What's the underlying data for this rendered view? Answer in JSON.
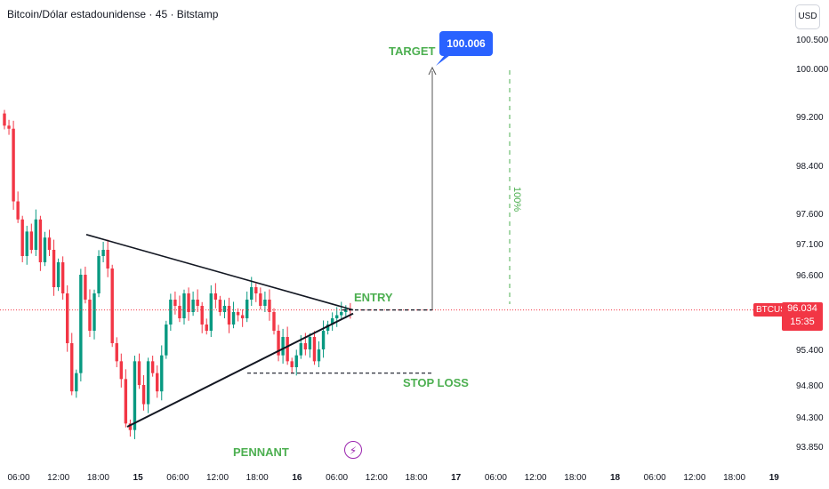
{
  "header": {
    "title": "Bitcoin/Dólar estadounidense · 45 · Bitstamp"
  },
  "currency_button": "USD",
  "price_tag": {
    "symbol": "BTCUSD",
    "price": "96.034",
    "countdown": "15:35"
  },
  "annotations": {
    "target": "TARGET",
    "target_value": "100.006",
    "entry": "ENTRY",
    "stop_loss": "STOP LOSS",
    "pennant": "PENNANT",
    "percent": "100%"
  },
  "colors": {
    "up": "#089981",
    "down": "#f23645",
    "accent": "#2962ff",
    "annotation": "#4caf50",
    "line": "#131722"
  },
  "icons": {
    "flash": "lightning-bolt-icon"
  },
  "chart_data": {
    "type": "candlestick",
    "title": "Bitcoin/Dólar estadounidense · 45 · Bitstamp",
    "y_axis": {
      "position": "right",
      "ticks": [
        "100.500",
        "100.000",
        "99.200",
        "98.400",
        "97.600",
        "97.100",
        "96.600",
        "95.400",
        "94.800",
        "94.300",
        "93.850"
      ],
      "tick_values": [
        100500,
        100000,
        99200,
        98400,
        97600,
        97100,
        96600,
        95400,
        94800,
        94300,
        93850
      ]
    },
    "x_axis": {
      "ticks": [
        "06:00",
        "12:00",
        "18:00",
        "15",
        "06:00",
        "12:00",
        "18:00",
        "16",
        "06:00",
        "12:00",
        "18:00",
        "17",
        "06:00",
        "12:00",
        "18:00",
        "18",
        "06:00",
        "12:00",
        "18:00",
        "19"
      ]
    },
    "close_series": [
      99050,
      99000,
      97800,
      97500,
      96900,
      97300,
      97000,
      97500,
      96800,
      97200,
      97000,
      96400,
      96800,
      96300,
      95500,
      94700,
      95000,
      96600,
      96200,
      95700,
      96300,
      96900,
      97000,
      96700,
      95500,
      95200,
      94900,
      94200,
      94100,
      95200,
      94800,
      94500,
      95200,
      95000,
      94700,
      95300,
      95800,
      96200,
      96100,
      95900,
      96300,
      96000,
      96200,
      96100,
      95800,
      95700,
      96300,
      96200,
      96000,
      96100,
      95800,
      96000,
      95950,
      95900,
      96200,
      96400,
      96300,
      96100,
      96200,
      96000,
      95700,
      95300,
      95600,
      95200,
      95100,
      95300,
      95500,
      95400,
      95600,
      95200,
      95400,
      95700,
      95800,
      95900,
      95950,
      96000,
      96050,
      96034
    ],
    "current_price": 96034,
    "pennant": {
      "upper_start": 97250,
      "lower_start": 94150,
      "apex": 96034
    },
    "entry_level": 96034,
    "stop_loss_level": 95000,
    "target_level": 100006
  }
}
